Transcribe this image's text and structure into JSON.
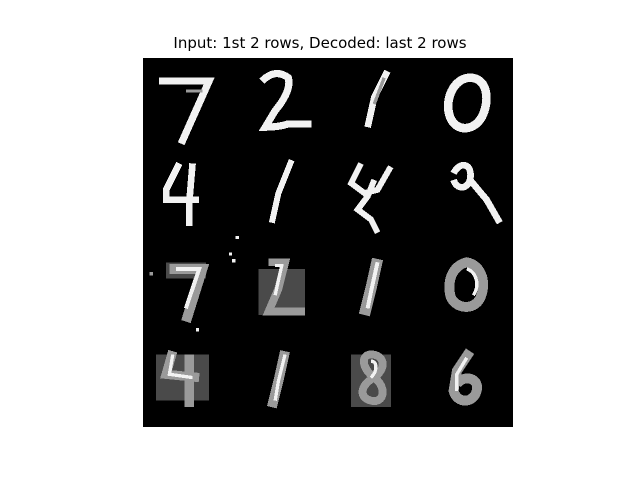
{
  "title": "Input: 1st 2 rows, Decoded: last 2 rows",
  "colors": {
    "background": "#000000",
    "stroke_bright": "#f2f2f2",
    "stroke_mid": "#9a9a9a",
    "stroke_dim": "#4a4a4a"
  },
  "grid": {
    "rows": 4,
    "cols": 4,
    "tiles": [
      {
        "row": 0,
        "kind": "input",
        "digit": "7"
      },
      {
        "row": 0,
        "kind": "input",
        "digit": "2"
      },
      {
        "row": 0,
        "kind": "input",
        "digit": "1"
      },
      {
        "row": 0,
        "kind": "input",
        "digit": "0"
      },
      {
        "row": 1,
        "kind": "input",
        "digit": "4"
      },
      {
        "row": 1,
        "kind": "input",
        "digit": "1"
      },
      {
        "row": 1,
        "kind": "input",
        "digit": "4"
      },
      {
        "row": 1,
        "kind": "input",
        "digit": "9"
      },
      {
        "row": 2,
        "kind": "decoded",
        "digit": "7"
      },
      {
        "row": 2,
        "kind": "decoded",
        "digit": "2"
      },
      {
        "row": 2,
        "kind": "decoded",
        "digit": "1"
      },
      {
        "row": 2,
        "kind": "decoded",
        "digit": "0"
      },
      {
        "row": 3,
        "kind": "decoded",
        "digit": "4"
      },
      {
        "row": 3,
        "kind": "decoded",
        "digit": "1"
      },
      {
        "row": 3,
        "kind": "decoded",
        "digit": "8"
      },
      {
        "row": 3,
        "kind": "decoded",
        "digit": "6"
      }
    ]
  }
}
